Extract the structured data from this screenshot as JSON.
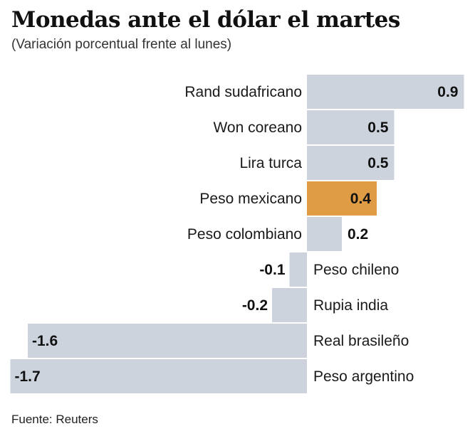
{
  "chart_data": {
    "type": "bar",
    "orientation": "horizontal",
    "title": "Monedas ante el dólar el martes",
    "subtitle": "(Variación porcentual frente al lunes)",
    "source": "Fuente: Reuters",
    "categories": [
      "Rand sudafricano",
      "Won coreano",
      "Lira turca",
      "Peso mexicano",
      "Peso colombiano",
      "Peso chileno",
      "Rupia india",
      "Real brasileño",
      "Peso argentino"
    ],
    "values": [
      0.9,
      0.5,
      0.5,
      0.4,
      0.2,
      -0.1,
      -0.2,
      -1.6,
      -1.7
    ],
    "value_labels": [
      "0.9",
      "0.5",
      "0.5",
      "0.4",
      "0.2",
      "-0.1",
      "-0.2",
      "-1.6",
      "-1.7"
    ],
    "highlight": "Peso mexicano",
    "xlim": [
      -1.7,
      0.9
    ],
    "grid": false,
    "colors": {
      "default": "#ccd3dc",
      "highlight": "#e09b45"
    }
  }
}
